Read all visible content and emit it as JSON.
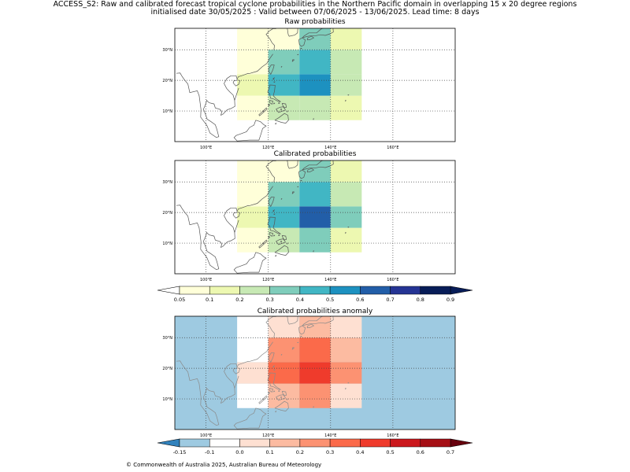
{
  "title_line1": "ACCESS_S2: Raw and calibrated forecast tropical cyclone probabilities in the Northern Pacific domain in overlapping 15 x 20 degree regions",
  "title_line2": "initialised date 30/05/2025 :  Valid between 07/06/2025 - 13/06/2025. Lead time: 8 days",
  "copyright": "© Commonwealth of Australia 2025, Australian Bureau of Meteorology",
  "chart_data": [
    {
      "type": "heatmap",
      "title": "Raw probabilities",
      "x_ticks": [
        "100°E",
        "120°E",
        "140°E",
        "160°E"
      ],
      "y_ticks": [
        "10°N",
        "20°N",
        "30°N"
      ],
      "xlim": [
        90,
        180
      ],
      "ylim": [
        0,
        37
      ],
      "grid": true,
      "cells": [
        {
          "lon": [
            110,
            120
          ],
          "lat": [
            7,
            15
          ],
          "value": 0.05
        },
        {
          "lon": [
            110,
            120
          ],
          "lat": [
            15,
            22
          ],
          "value": 0.1
        },
        {
          "lon": [
            110,
            120
          ],
          "lat": [
            22,
            30
          ],
          "value": 0.05
        },
        {
          "lon": [
            110,
            120
          ],
          "lat": [
            30,
            37
          ],
          "value": 0.05
        },
        {
          "lon": [
            120,
            130
          ],
          "lat": [
            7,
            15
          ],
          "value": 0.2
        },
        {
          "lon": [
            120,
            130
          ],
          "lat": [
            15,
            22
          ],
          "value": 0.4
        },
        {
          "lon": [
            120,
            130
          ],
          "lat": [
            22,
            30
          ],
          "value": 0.3
        },
        {
          "lon": [
            120,
            130
          ],
          "lat": [
            30,
            37
          ],
          "value": 0.05
        },
        {
          "lon": [
            130,
            140
          ],
          "lat": [
            7,
            15
          ],
          "value": 0.2
        },
        {
          "lon": [
            130,
            140
          ],
          "lat": [
            15,
            22
          ],
          "value": 0.5
        },
        {
          "lon": [
            130,
            140
          ],
          "lat": [
            22,
            30
          ],
          "value": 0.4
        },
        {
          "lon": [
            130,
            140
          ],
          "lat": [
            30,
            37
          ],
          "value": 0.3
        },
        {
          "lon": [
            140,
            150
          ],
          "lat": [
            7,
            15
          ],
          "value": 0.1
        },
        {
          "lon": [
            140,
            150
          ],
          "lat": [
            15,
            22
          ],
          "value": 0.2
        },
        {
          "lon": [
            140,
            150
          ],
          "lat": [
            22,
            30
          ],
          "value": 0.2
        },
        {
          "lon": [
            140,
            150
          ],
          "lat": [
            30,
            37
          ],
          "value": 0.1
        }
      ]
    },
    {
      "type": "heatmap",
      "title": "Calibrated probabilities",
      "x_ticks": [
        "100°E",
        "120°E",
        "140°E",
        "160°E"
      ],
      "y_ticks": [
        "10°N",
        "20°N",
        "30°N"
      ],
      "xlim": [
        90,
        180
      ],
      "ylim": [
        0,
        37
      ],
      "grid": true,
      "cells": [
        {
          "lon": [
            110,
            120
          ],
          "lat": [
            7,
            15
          ],
          "value": 0.05
        },
        {
          "lon": [
            110,
            120
          ],
          "lat": [
            15,
            22
          ],
          "value": 0.1
        },
        {
          "lon": [
            110,
            120
          ],
          "lat": [
            22,
            30
          ],
          "value": 0.05
        },
        {
          "lon": [
            110,
            120
          ],
          "lat": [
            30,
            37
          ],
          "value": 0.05
        },
        {
          "lon": [
            120,
            130
          ],
          "lat": [
            7,
            15
          ],
          "value": 0.2
        },
        {
          "lon": [
            120,
            130
          ],
          "lat": [
            15,
            22
          ],
          "value": 0.4
        },
        {
          "lon": [
            120,
            130
          ],
          "lat": [
            22,
            30
          ],
          "value": 0.3
        },
        {
          "lon": [
            120,
            130
          ],
          "lat": [
            30,
            37
          ],
          "value": 0.05
        },
        {
          "lon": [
            130,
            140
          ],
          "lat": [
            7,
            15
          ],
          "value": 0.3
        },
        {
          "lon": [
            130,
            140
          ],
          "lat": [
            15,
            22
          ],
          "value": 0.6
        },
        {
          "lon": [
            130,
            140
          ],
          "lat": [
            22,
            30
          ],
          "value": 0.4
        },
        {
          "lon": [
            130,
            140
          ],
          "lat": [
            30,
            37
          ],
          "value": 0.3
        },
        {
          "lon": [
            140,
            150
          ],
          "lat": [
            7,
            15
          ],
          "value": 0.1
        },
        {
          "lon": [
            140,
            150
          ],
          "lat": [
            15,
            22
          ],
          "value": 0.3
        },
        {
          "lon": [
            140,
            150
          ],
          "lat": [
            22,
            30
          ],
          "value": 0.2
        },
        {
          "lon": [
            140,
            150
          ],
          "lat": [
            30,
            37
          ],
          "value": 0.1
        }
      ]
    },
    {
      "type": "heatmap",
      "title": "Calibrated probabilities anomaly",
      "x_ticks": [
        "100°E",
        "120°E",
        "140°E",
        "160°E"
      ],
      "y_ticks": [
        "10°N",
        "20°N",
        "30°N"
      ],
      "xlim": [
        90,
        180
      ],
      "ylim": [
        0,
        37
      ],
      "grid": true,
      "background_value": -0.15,
      "cells": [
        {
          "lon": [
            110,
            120
          ],
          "lat": [
            7,
            15
          ],
          "value": -0.1
        },
        {
          "lon": [
            110,
            120
          ],
          "lat": [
            15,
            22
          ],
          "value": 0.0
        },
        {
          "lon": [
            110,
            120
          ],
          "lat": [
            22,
            30
          ],
          "value": -0.1
        },
        {
          "lon": [
            110,
            120
          ],
          "lat": [
            30,
            37
          ],
          "value": -0.1
        },
        {
          "lon": [
            120,
            130
          ],
          "lat": [
            7,
            15
          ],
          "value": 0.1
        },
        {
          "lon": [
            120,
            130
          ],
          "lat": [
            15,
            22
          ],
          "value": 0.3
        },
        {
          "lon": [
            120,
            130
          ],
          "lat": [
            22,
            30
          ],
          "value": 0.2
        },
        {
          "lon": [
            120,
            130
          ],
          "lat": [
            30,
            37
          ],
          "value": 0.0
        },
        {
          "lon": [
            130,
            140
          ],
          "lat": [
            7,
            15
          ],
          "value": 0.2
        },
        {
          "lon": [
            130,
            140
          ],
          "lat": [
            15,
            22
          ],
          "value": 0.4
        },
        {
          "lon": [
            130,
            140
          ],
          "lat": [
            22,
            30
          ],
          "value": 0.3
        },
        {
          "lon": [
            130,
            140
          ],
          "lat": [
            30,
            37
          ],
          "value": 0.1
        },
        {
          "lon": [
            140,
            150
          ],
          "lat": [
            7,
            15
          ],
          "value": 0.0
        },
        {
          "lon": [
            140,
            150
          ],
          "lat": [
            15,
            22
          ],
          "value": 0.2
        },
        {
          "lon": [
            140,
            150
          ],
          "lat": [
            22,
            30
          ],
          "value": 0.1
        },
        {
          "lon": [
            140,
            150
          ],
          "lat": [
            30,
            37
          ],
          "value": 0.0
        }
      ]
    }
  ],
  "colorbars": [
    {
      "name": "probability",
      "labels": [
        "0.05",
        "0.1",
        "0.2",
        "0.3",
        "0.4",
        "0.5",
        "0.6",
        "0.7",
        "0.8",
        "0.9"
      ],
      "colors": [
        "#ffffd9",
        "#edf8b1",
        "#c7e9b4",
        "#7fcdbb",
        "#41b6c4",
        "#1d91c0",
        "#225ea8",
        "#253494",
        "#081d58"
      ],
      "under_color": "#ffffff",
      "over_color": "#081d58"
    },
    {
      "name": "anomaly",
      "labels": [
        "-0.15",
        "-0.1",
        "0.0",
        "0.1",
        "0.2",
        "0.3",
        "0.4",
        "0.5",
        "0.6",
        "0.7"
      ],
      "colors": [
        "#9ecae1",
        "#ffffff",
        "#fee0d2",
        "#fcbba1",
        "#fc9272",
        "#fb6a4a",
        "#ef3b2c",
        "#cb181d",
        "#a50f15"
      ],
      "under_color": "#3182bd",
      "over_color": "#67000d"
    }
  ]
}
